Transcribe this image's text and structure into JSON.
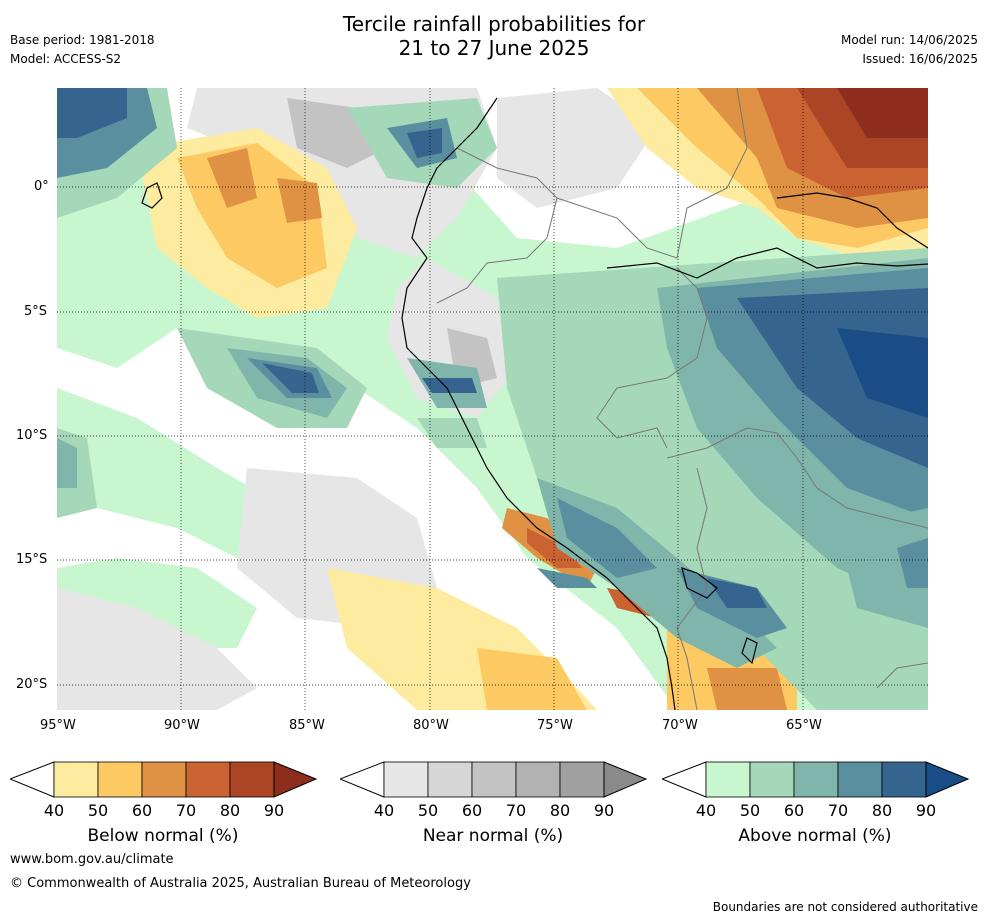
{
  "header": {
    "title_line1": "Tercile rainfall probabilities for",
    "title_line2": "21 to 27 June 2025",
    "base_period": "Base period: 1981-2018",
    "model": "Model: ACCESS-S2",
    "model_run": "Model run: 14/06/2025",
    "issued": "Issued: 16/06/2025"
  },
  "axes": {
    "lon_labels": [
      "95°W",
      "90°W",
      "85°W",
      "80°W",
      "75°W",
      "70°W",
      "65°W"
    ],
    "lat_labels": [
      "0°",
      "5°S",
      "10°S",
      "15°S",
      "20°S"
    ]
  },
  "colorbars": [
    {
      "label": "Below normal (%)",
      "ticks": [
        "40",
        "50",
        "60",
        "70",
        "80",
        "90"
      ],
      "colors": [
        "#fdeba0",
        "#fdc963",
        "#e09244",
        "#cb6231",
        "#ac4426",
        "#8c2d1d"
      ]
    },
    {
      "label": "Near normal (%)",
      "ticks": [
        "40",
        "50",
        "60",
        "70",
        "80",
        "90"
      ],
      "colors": [
        "#e6e6e6",
        "#d6d6d6",
        "#c3c3c3",
        "#b2b2b2",
        "#a0a0a0",
        "#8a8a8a"
      ]
    },
    {
      "label": "Above normal (%)",
      "ticks": [
        "40",
        "50",
        "60",
        "70",
        "80",
        "90"
      ],
      "colors": [
        "#c8f7cf",
        "#a5d8b9",
        "#80b5ab",
        "#5a8fa0",
        "#35648f",
        "#1a4d85"
      ]
    }
  ],
  "footer": {
    "website": "www.bom.gov.au/climate",
    "copyright": "© Commonwealth of Australia 2025, Australian Bureau of Meteorology",
    "disclaimer": "Boundaries are not considered authoritative"
  }
}
